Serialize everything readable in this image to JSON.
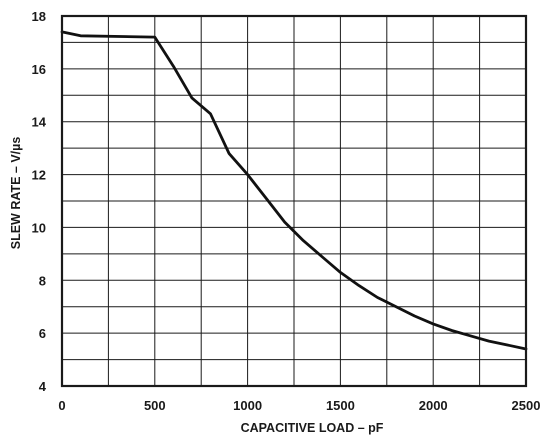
{
  "chart_data": {
    "type": "line",
    "title": "",
    "xlabel": "CAPACITIVE LOAD – pF",
    "ylabel": "SLEW RATE – V/µs",
    "xlim": [
      0,
      2500
    ],
    "ylim": [
      4,
      18
    ],
    "x_ticks": [
      0,
      500,
      1000,
      1500,
      2000,
      2500
    ],
    "y_ticks": [
      4,
      6,
      8,
      10,
      12,
      14,
      16,
      18
    ],
    "x_grid_step": 250,
    "y_grid_step": 1,
    "grid": true,
    "legend": "none",
    "series": [
      {
        "color": "#111111",
        "x": [
          0,
          100,
          500,
          600,
          700,
          800,
          900,
          1000,
          1100,
          1200,
          1300,
          1400,
          1500,
          1600,
          1700,
          1800,
          1900,
          2000,
          2100,
          2200,
          2300,
          2400,
          2500
        ],
        "y": [
          17.4,
          17.25,
          17.2,
          16.1,
          14.9,
          14.3,
          12.8,
          12.0,
          11.1,
          10.2,
          9.5,
          8.9,
          8.3,
          7.8,
          7.35,
          7.0,
          6.65,
          6.35,
          6.1,
          5.9,
          5.7,
          5.55,
          5.4
        ]
      }
    ]
  }
}
